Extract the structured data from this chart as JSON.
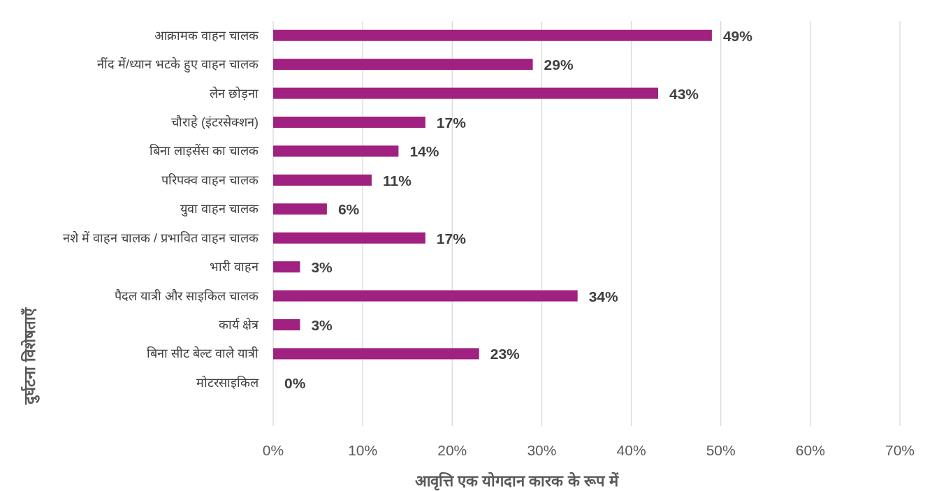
{
  "chart_data": {
    "type": "bar",
    "orientation": "horizontal",
    "xlabel": "आवृत्ति एक योगदान कारक के रूप में",
    "ylabel": "दुर्घटना विशेषताएँ",
    "categories": [
      "आक्रामक वाहन चालक",
      "नींद में/ध्यान भटके हुए वाहन चालक",
      "लेन छोड़ना",
      "चौराहे (इंटरसेक्शन)",
      "बिना लाइसेंस का चालक",
      "परिपक्व वाहन चालक",
      "युवा वाहन चालक",
      "नशे में वाहन चालक / प्रभावित वाहन चालक",
      "भारी वाहन",
      "पैदल यात्री और साइकिल चालक",
      "कार्य क्षेत्र",
      "बिना सीट बेल्ट वाले यात्री",
      "मोटरसाइकिल"
    ],
    "values": [
      49,
      29,
      43,
      17,
      14,
      11,
      6,
      17,
      3,
      34,
      3,
      23,
      0
    ],
    "value_labels": [
      "49%",
      "29%",
      "43%",
      "17%",
      "14%",
      "11%",
      "6%",
      "17%",
      "3%",
      "34%",
      "3%",
      "23%",
      "0%"
    ],
    "color": "#a0217f",
    "xlim": [
      0,
      70
    ],
    "xticks": [
      {
        "value": 0,
        "label": "0%"
      },
      {
        "value": 10,
        "label": "10%"
      },
      {
        "value": 20,
        "label": "20%"
      },
      {
        "value": 30,
        "label": "30%"
      },
      {
        "value": 40,
        "label": "40%"
      },
      {
        "value": 50,
        "label": "50%"
      },
      {
        "value": 60,
        "label": "60%"
      },
      {
        "value": 70,
        "label": "70%"
      }
    ],
    "grid": "x"
  }
}
